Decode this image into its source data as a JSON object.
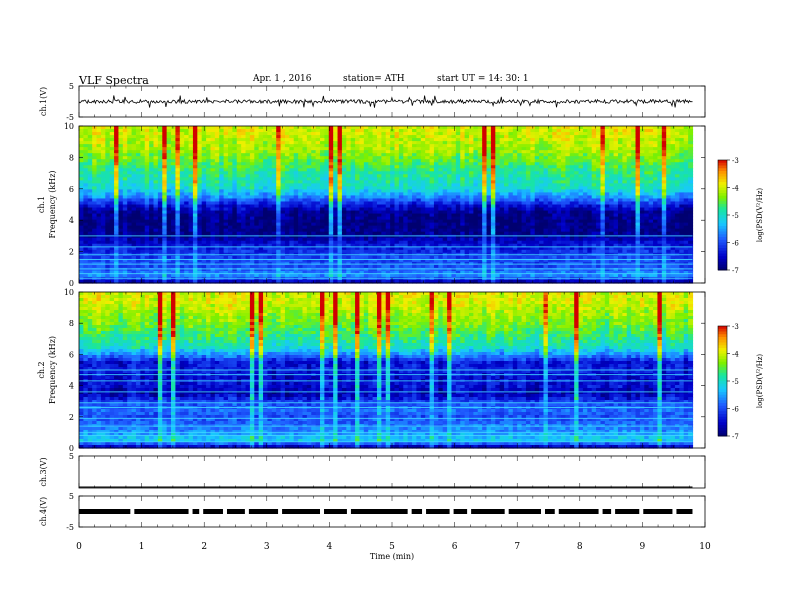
{
  "header": {
    "title": "VLF  Spectra",
    "date": "Apr. 1  , 2016",
    "station": "station= ATH",
    "start": "start  UT  =    14: 30: 1"
  },
  "chart_data": [
    {
      "type": "line",
      "id": "ch1-waveform",
      "ylabel": "ch.1(V)",
      "ylim": [
        -5,
        5
      ],
      "yticks": [
        "5",
        "-5"
      ],
      "xlim": [
        0,
        10
      ],
      "series": [
        {
          "x_range": [
            0,
            9.8
          ],
          "baseline": 0,
          "amplitude_typical": 0.6,
          "spike_max": 2.0,
          "color": "#000000"
        }
      ]
    },
    {
      "type": "heatmap",
      "id": "ch1-spectrogram",
      "ylabel": "ch.1\nFrequency  (kHz)",
      "ylim": [
        0,
        10
      ],
      "yticks": [
        "0",
        "2",
        "4",
        "6",
        "8",
        "10"
      ],
      "xlim": [
        0,
        10
      ],
      "data_extent_min": [
        0,
        9.8
      ],
      "colorbar": {
        "label": "log(PSD(V²/Hz)",
        "range": [
          -7,
          -3
        ],
        "ticks": [
          "-3",
          "-4",
          "-5",
          "-6",
          "-7"
        ]
      },
      "profile_log_psd": [
        [
          0.0,
          -6.8
        ],
        [
          0.5,
          -5.6
        ],
        [
          1.0,
          -6.0
        ],
        [
          1.5,
          -6.0
        ],
        [
          2.0,
          -6.2
        ],
        [
          2.5,
          -6.4
        ],
        [
          3.0,
          -6.8
        ],
        [
          3.5,
          -6.9
        ],
        [
          4.0,
          -6.9
        ],
        [
          4.5,
          -6.8
        ],
        [
          5.0,
          -6.3
        ],
        [
          5.5,
          -5.6
        ],
        [
          6.0,
          -5.1
        ],
        [
          6.5,
          -4.9
        ],
        [
          7.0,
          -4.8
        ],
        [
          7.5,
          -4.6
        ],
        [
          8.0,
          -4.4
        ],
        [
          8.5,
          -4.2
        ],
        [
          9.0,
          -4.1
        ],
        [
          9.5,
          -4.0
        ],
        [
          10.0,
          -4.0
        ]
      ],
      "line_bands_khz": [
        0.3,
        0.6,
        0.9,
        1.2,
        1.5,
        1.8,
        2.3,
        3.0
      ]
    },
    {
      "type": "heatmap",
      "id": "ch2-spectrogram",
      "ylabel": "ch.2\nFrequency  (kHz)",
      "ylim": [
        0,
        10
      ],
      "yticks": [
        "0",
        "2",
        "4",
        "6",
        "8",
        "10"
      ],
      "xlim": [
        0,
        10
      ],
      "data_extent_min": [
        0,
        9.8
      ],
      "colorbar": {
        "label": "log(PSD(V²/Hz)",
        "range": [
          -7,
          -3
        ],
        "ticks": [
          "-3",
          "-4",
          "-5",
          "-6",
          "-7"
        ]
      },
      "profile_log_psd": [
        [
          0.0,
          -6.8
        ],
        [
          0.5,
          -5.2
        ],
        [
          1.0,
          -5.6
        ],
        [
          1.5,
          -5.8
        ],
        [
          2.0,
          -6.0
        ],
        [
          2.5,
          -5.8
        ],
        [
          3.0,
          -6.1
        ],
        [
          3.5,
          -6.7
        ],
        [
          4.0,
          -6.4
        ],
        [
          4.5,
          -6.5
        ],
        [
          5.0,
          -6.3
        ],
        [
          5.5,
          -6.4
        ],
        [
          6.0,
          -5.6
        ],
        [
          6.5,
          -5.0
        ],
        [
          7.0,
          -4.8
        ],
        [
          7.5,
          -4.6
        ],
        [
          8.0,
          -4.4
        ],
        [
          8.5,
          -4.3
        ],
        [
          9.0,
          -4.1
        ],
        [
          9.5,
          -4.0
        ],
        [
          10.0,
          -4.0
        ]
      ],
      "line_bands_khz": [
        0.4,
        0.8,
        1.0,
        1.4,
        1.9,
        2.6,
        2.9,
        3.6,
        4.3,
        4.7,
        5.0
      ]
    },
    {
      "type": "line",
      "id": "ch3-waveform",
      "ylabel": "ch.3(V)",
      "ylim": [
        -5,
        5
      ],
      "yticks": [
        "5"
      ],
      "xlim": [
        0,
        10
      ],
      "series": [
        {
          "x_range": [
            0,
            9.8
          ],
          "baseline": -5,
          "color": "#000000"
        }
      ]
    },
    {
      "type": "line",
      "id": "ch4-waveform",
      "ylabel": "ch.4(V)",
      "ylim": [
        -5,
        5
      ],
      "yticks": [
        "5",
        "-5"
      ],
      "xlim": [
        0,
        10
      ],
      "series": [
        {
          "x_range": [
            0,
            9.8
          ],
          "baseline": 0,
          "color": "#000000",
          "gaps_min": [
            0.82,
            1.75,
            1.92,
            2.3,
            2.65,
            3.18,
            3.85,
            4.28,
            5.25,
            5.48,
            5.92,
            6.2,
            6.8,
            7.38,
            7.6,
            8.3,
            8.5,
            8.95,
            9.48
          ]
        }
      ]
    }
  ],
  "x_axis": {
    "label": "Time  (min)",
    "ticks": [
      "0",
      "1",
      "2",
      "3",
      "4",
      "5",
      "6",
      "7",
      "8",
      "9",
      "10"
    ],
    "range": [
      0,
      10
    ]
  }
}
